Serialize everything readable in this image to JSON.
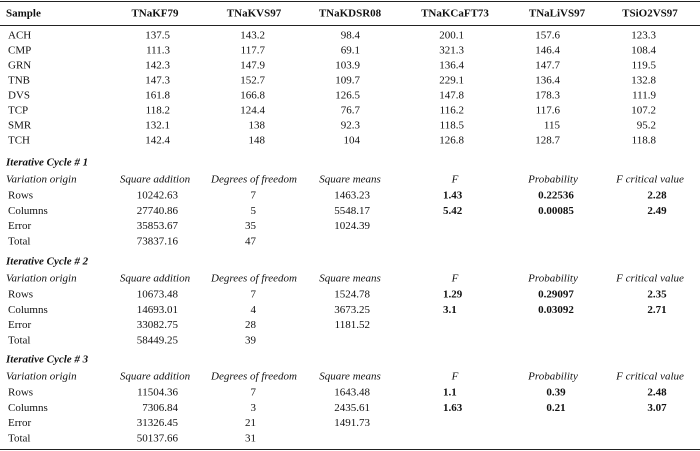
{
  "table": {
    "header": [
      "Sample",
      "TNaKF79",
      "TNaKVS97",
      "TNaKDSR08",
      "TNaKCaFT73",
      "TNaLiVS97",
      "TSiO2VS97"
    ],
    "rows": [
      [
        "ACH",
        "137.5",
        "143.2",
        "98.4",
        "200.1",
        "157.6",
        "123.3"
      ],
      [
        "CMP",
        "111.3",
        "117.7",
        "69.1",
        "321.3",
        "146.4",
        "108.4"
      ],
      [
        "GRN",
        "142.3",
        "147.9",
        "103.9",
        "136.4",
        "147.7",
        "119.5"
      ],
      [
        "TNB",
        "147.3",
        "152.7",
        "109.7",
        "229.1",
        "136.4",
        "132.8"
      ],
      [
        "DVS",
        "161.8",
        "166.8",
        "126.5",
        "147.8",
        "178.3",
        "111.9"
      ],
      [
        "TCP",
        "118.2",
        "124.4",
        "76.7",
        "116.2",
        "117.6",
        "107.2"
      ],
      [
        "SMR",
        "132.1",
        "138",
        "92.3",
        "118.5",
        "115",
        "95.2"
      ],
      [
        "TCH",
        "142.4",
        "148",
        "104",
        "126.8",
        "128.7",
        "118.8"
      ]
    ]
  },
  "cycles": [
    {
      "title": "Iterative Cycle # 1",
      "header": [
        "Variation origin",
        "Square addition",
        "Degrees of freedom",
        "Square means",
        "F",
        "Probability",
        "F critical value"
      ],
      "rows": [
        [
          "Rows",
          "10242.63",
          "7",
          "1463.23",
          "1.43",
          "0.22536",
          "2.28"
        ],
        [
          "Columns",
          "27740.86",
          "5",
          "5548.17",
          "5.42",
          "0.00085",
          "2.49"
        ],
        [
          "Error",
          "35853.67",
          "35",
          "1024.39"
        ],
        [
          "Total",
          "73837.16",
          "47"
        ]
      ]
    },
    {
      "title": "Iterative Cycle # 2",
      "header": [
        "Variation origin",
        "Square addition",
        "Degrees of freedom",
        "Square means",
        "F",
        "Probability",
        "F critical value"
      ],
      "rows": [
        [
          "Rows",
          "10673.48",
          "7",
          "1524.78",
          "1.29",
          "0.29097",
          "2.35"
        ],
        [
          "Columns",
          "14693.01",
          "4",
          "3673.25",
          "3.1",
          "0.03092",
          "2.71"
        ],
        [
          "Error",
          "33082.75",
          "28",
          "1181.52"
        ],
        [
          "Total",
          "58449.25",
          "39"
        ]
      ]
    },
    {
      "title": "Iterative Cycle # 3",
      "header": [
        "Variation origin",
        "Square addition",
        "Degrees of freedom",
        "Square means",
        "F",
        "Probability",
        "F critical value"
      ],
      "rows": [
        [
          "Rows",
          "11504.36",
          "7",
          "1643.48",
          "1.1",
          "0.39",
          "2.48"
        ],
        [
          "Columns",
          "7306.84",
          "3",
          "2435.61",
          "1.63",
          "0.21",
          "3.07"
        ],
        [
          "Error",
          "31326.45",
          "21",
          "1491.73"
        ],
        [
          "Total",
          "50137.66",
          "31"
        ]
      ]
    }
  ]
}
